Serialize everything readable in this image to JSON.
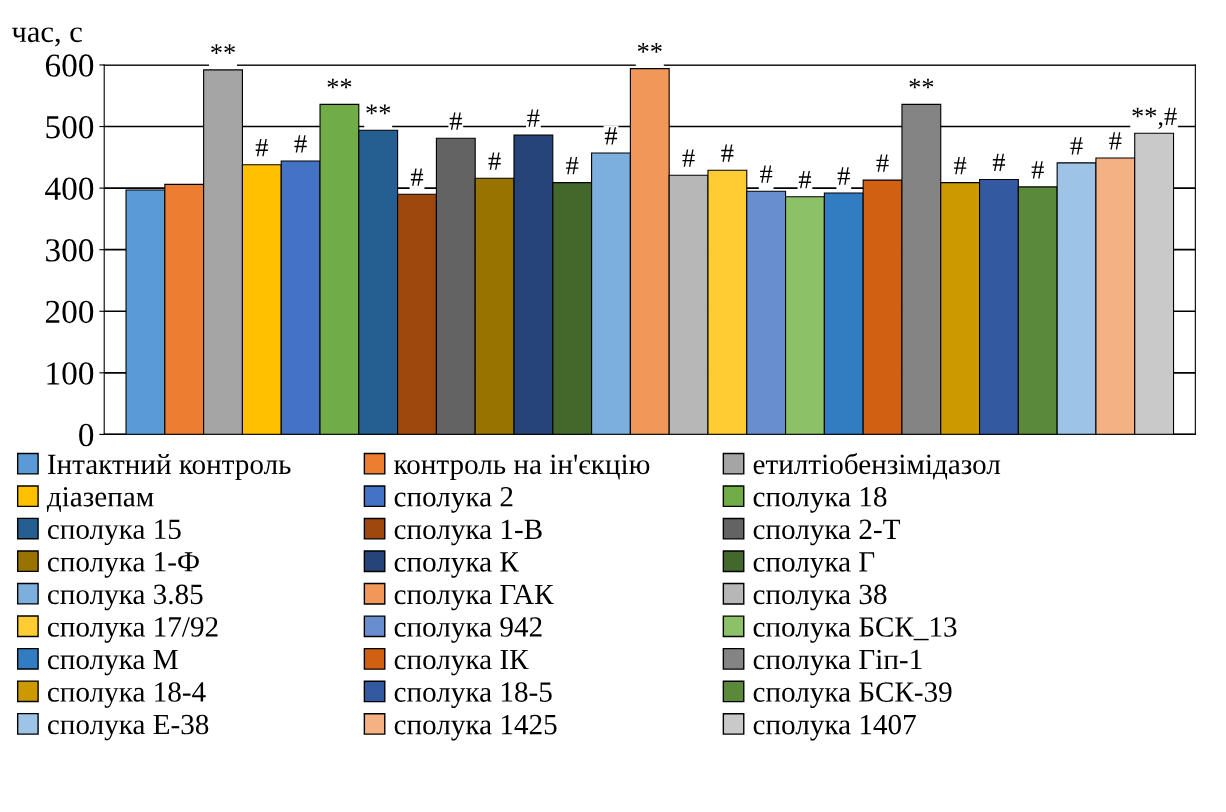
{
  "chart_data": {
    "type": "bar",
    "ylabel": "час, с",
    "categories": [
      null
    ],
    "ylim": [
      0,
      600
    ],
    "yticks": [
      0,
      100,
      200,
      300,
      400,
      500,
      600
    ],
    "grid": "y",
    "legend": "bottom",
    "series": [
      {
        "name": "Інтактний контроль",
        "color": "#5b9bd5",
        "values": [
          397
        ],
        "value_labels": [
          null
        ]
      },
      {
        "name": "контроль на ін'єкцію",
        "color": "#ed7d31",
        "values": [
          406
        ],
        "value_labels": [
          null
        ]
      },
      {
        "name": "етилтіобензімідазол",
        "color": "#a5a5a5",
        "values": [
          592
        ],
        "value_labels": [
          "**"
        ]
      },
      {
        "name": "діазепам",
        "color": "#ffc000",
        "values": [
          438
        ],
        "value_labels": [
          "#"
        ]
      },
      {
        "name": "сполука 2",
        "color": "#4472c4",
        "values": [
          444
        ],
        "value_labels": [
          "#"
        ]
      },
      {
        "name": "сполука 18",
        "color": "#70ad47",
        "values": [
          536
        ],
        "value_labels": [
          "**"
        ]
      },
      {
        "name": "сполука 15",
        "color": "#255e91",
        "values": [
          494
        ],
        "value_labels": [
          "**"
        ]
      },
      {
        "name": "сполука 1-В",
        "color": "#9e480e",
        "values": [
          390
        ],
        "value_labels": [
          "#"
        ]
      },
      {
        "name": "сполука 2-Т",
        "color": "#636363",
        "values": [
          481
        ],
        "value_labels": [
          "#"
        ]
      },
      {
        "name": "сполука 1-Ф",
        "color": "#997300",
        "values": [
          416
        ],
        "value_labels": [
          "#"
        ]
      },
      {
        "name": "сполука К",
        "color": "#264478",
        "values": [
          486
        ],
        "value_labels": [
          "#"
        ]
      },
      {
        "name": "сполука Г",
        "color": "#43682b",
        "values": [
          409
        ],
        "value_labels": [
          "#"
        ]
      },
      {
        "name": "сполука 3.85",
        "color": "#7cafdd",
        "values": [
          457
        ],
        "value_labels": [
          "#"
        ]
      },
      {
        "name": "сполука ГАК",
        "color": "#f1975a",
        "values": [
          594
        ],
        "value_labels": [
          "**"
        ]
      },
      {
        "name": "сполука 38",
        "color": "#b7b7b7",
        "values": [
          421
        ],
        "value_labels": [
          "#"
        ]
      },
      {
        "name": "сполука 17/92",
        "color": "#ffcd33",
        "values": [
          429
        ],
        "value_labels": [
          "#"
        ]
      },
      {
        "name": "сполука 942",
        "color": "#698ed0",
        "values": [
          395
        ],
        "value_labels": [
          "#"
        ]
      },
      {
        "name": "сполука БСК_13",
        "color": "#8cc168",
        "values": [
          386
        ],
        "value_labels": [
          "#"
        ]
      },
      {
        "name": "сполука М",
        "color": "#327dc2",
        "values": [
          392
        ],
        "value_labels": [
          "#"
        ]
      },
      {
        "name": "сполука ІК",
        "color": "#d26012",
        "values": [
          413
        ],
        "value_labels": [
          "#"
        ]
      },
      {
        "name": "сполука Гіп-1",
        "color": "#848484",
        "values": [
          536
        ],
        "value_labels": [
          "**"
        ]
      },
      {
        "name": "сполука 18-4",
        "color": "#cc9a00",
        "values": [
          409
        ],
        "value_labels": [
          "#"
        ]
      },
      {
        "name": "сполука 18-5",
        "color": "#335aa1",
        "values": [
          414
        ],
        "value_labels": [
          "#"
        ]
      },
      {
        "name": "сполука БСК-39",
        "color": "#5a8a39",
        "values": [
          402
        ],
        "value_labels": [
          "#"
        ]
      },
      {
        "name": "сполука Е-38",
        "color": "#9dc3e6",
        "values": [
          441
        ],
        "value_labels": [
          "#"
        ]
      },
      {
        "name": "сполука 1425",
        "color": "#f4b183",
        "values": [
          449
        ],
        "value_labels": [
          "#"
        ]
      },
      {
        "name": "сполука 1407",
        "color": "#c9c9c9",
        "values": [
          489
        ],
        "value_labels": [
          "**,#"
        ]
      }
    ]
  }
}
